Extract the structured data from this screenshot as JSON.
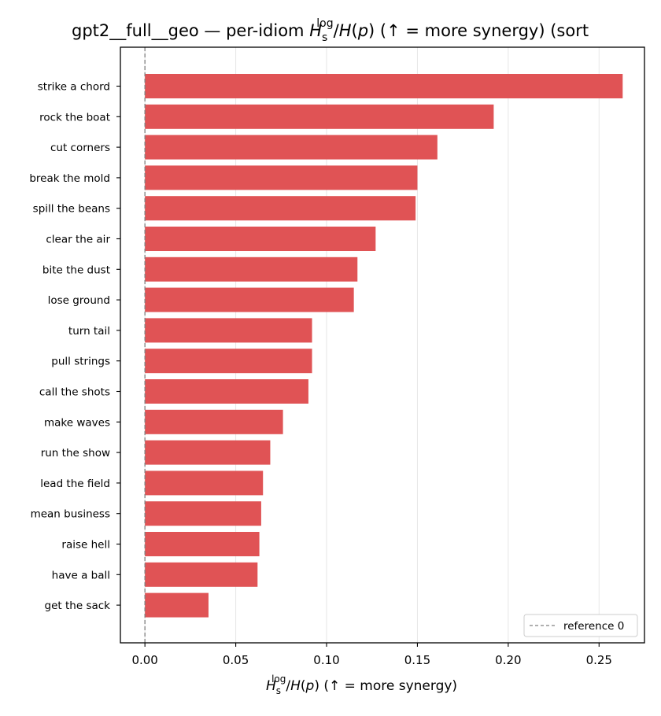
{
  "chart_data": {
    "type": "bar",
    "orientation": "horizontal",
    "title": {
      "prefix": "gpt2__full__geo — per-idiom ",
      "suffix": "  (↑ = more synergy) (sort"
    },
    "xlabel": {
      "suffix": "  (↑ = more synergy)"
    },
    "math": {
      "H": "H",
      "sub": "s",
      "sup": "log",
      "slash": "/",
      "Hp": "H",
      "p_open": "(",
      "p": "p",
      "p_close": ")"
    },
    "categories": [
      "strike a chord",
      "rock the boat",
      "cut corners",
      "break the mold",
      "spill the beans",
      "clear the air",
      "bite the dust",
      "lose ground",
      "turn tail",
      "pull strings",
      "call the shots",
      "make waves",
      "run the show",
      "lead the field",
      "mean business",
      "raise hell",
      "have a ball",
      "get the sack"
    ],
    "values": [
      0.263,
      0.192,
      0.161,
      0.15,
      0.149,
      0.127,
      0.117,
      0.115,
      0.092,
      0.092,
      0.09,
      0.076,
      0.069,
      0.065,
      0.064,
      0.063,
      0.062,
      0.035
    ],
    "xlim": [
      -0.0135,
      0.275
    ],
    "xticks": [
      0.0,
      0.05,
      0.1,
      0.15,
      0.2,
      0.25
    ],
    "xtick_labels": [
      "0.00",
      "0.05",
      "0.10",
      "0.15",
      "0.20",
      "0.25"
    ],
    "bar_color": "#e05355",
    "reference_line": {
      "value": 0.0,
      "style": "dashed",
      "color": "#808080"
    },
    "legend": {
      "placement": "lower-right",
      "label": "reference 0"
    },
    "grid": {
      "x": true,
      "y": false,
      "color": "#e6e6e6"
    }
  }
}
